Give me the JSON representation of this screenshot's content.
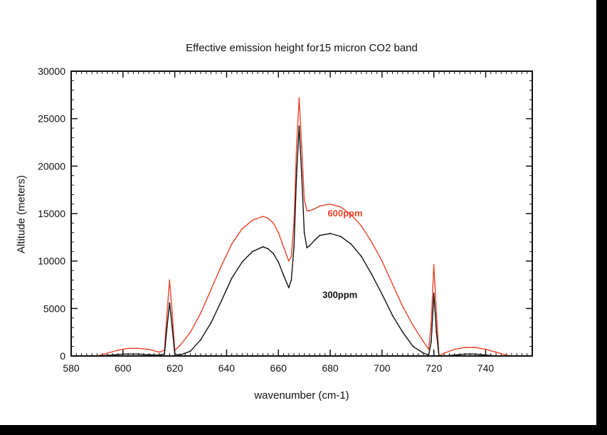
{
  "chart_data": {
    "type": "line",
    "title": "Effective emission height for15 micron  CO2 band",
    "xlabel": "wavenumber (cm-1)",
    "ylabel": "Altitude (meters)",
    "xlim": [
      580,
      758
    ],
    "ylim": [
      0,
      30000
    ],
    "x_ticks": [
      580,
      600,
      620,
      640,
      660,
      680,
      700,
      720,
      740
    ],
    "x_tick_labels": [
      "580",
      "600",
      "620",
      "640",
      "660",
      "680",
      "700",
      "720",
      "740"
    ],
    "y_ticks": [
      0,
      5000,
      10000,
      15000,
      20000,
      25000,
      30000
    ],
    "y_tick_labels": [
      "0",
      "5000",
      "10000",
      "15000",
      "20000",
      "25000",
      "30000"
    ],
    "grid": false,
    "legend": "none",
    "series": [
      {
        "name": "600ppm",
        "color": "#e8442a",
        "label_at": [
          679,
          14700
        ],
        "x": [
          590,
          594,
          598,
          602,
          606,
          610,
          614,
          616,
          617,
          618,
          619,
          620,
          622,
          626,
          630,
          634,
          638,
          642,
          646,
          650,
          654,
          656,
          658,
          660,
          662,
          664,
          665,
          666,
          667,
          668,
          669,
          670,
          671,
          672,
          674,
          676,
          680,
          684,
          688,
          692,
          696,
          700,
          704,
          708,
          712,
          716,
          718,
          719,
          720,
          721,
          722,
          724,
          728,
          732,
          736,
          740,
          744,
          748,
          750
        ],
        "y": [
          0,
          300,
          600,
          800,
          800,
          700,
          400,
          600,
          4500,
          8000,
          4500,
          600,
          1100,
          2500,
          4500,
          7000,
          9500,
          11800,
          13400,
          14300,
          14700,
          14500,
          14000,
          13000,
          11500,
          10000,
          10500,
          14000,
          22000,
          27200,
          22000,
          16500,
          15300,
          15300,
          15500,
          15800,
          16000,
          15700,
          14900,
          13700,
          12000,
          10000,
          7600,
          5200,
          3200,
          1500,
          700,
          3500,
          9600,
          4500,
          0,
          300,
          700,
          900,
          900,
          700,
          400,
          100,
          0
        ]
      },
      {
        "name": "300ppm",
        "color": "#111111",
        "label_at": [
          677,
          6100
        ],
        "x": [
          590,
          596,
          600,
          606,
          612,
          614,
          616,
          617,
          618,
          619,
          620,
          622,
          626,
          630,
          634,
          638,
          642,
          646,
          650,
          654,
          656,
          658,
          660,
          662,
          664,
          665,
          666,
          667,
          668,
          669,
          670,
          671,
          672,
          674,
          676,
          680,
          684,
          688,
          692,
          696,
          700,
          704,
          708,
          712,
          716,
          718,
          719,
          720,
          721,
          722,
          724,
          728,
          732,
          736,
          740,
          744,
          748,
          750
        ],
        "y": [
          0,
          100,
          200,
          200,
          100,
          100,
          200,
          3000,
          5600,
          3000,
          200,
          100,
          500,
          1700,
          3500,
          5800,
          8200,
          9900,
          11000,
          11500,
          11300,
          10800,
          9900,
          8500,
          7200,
          8000,
          11500,
          19000,
          24200,
          19000,
          13000,
          11400,
          11600,
          12200,
          12700,
          12900,
          12600,
          11800,
          10500,
          8600,
          6500,
          4300,
          2500,
          1000,
          300,
          100,
          1500,
          6600,
          2500,
          0,
          0,
          100,
          200,
          200,
          100,
          0,
          0,
          0
        ]
      }
    ]
  }
}
